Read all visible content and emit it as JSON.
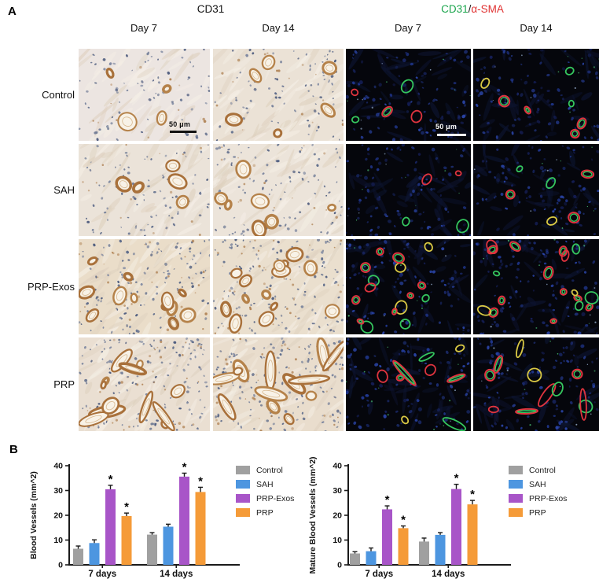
{
  "panel_a": {
    "label": "A",
    "ihc_title": "CD31",
    "if_title": {
      "parts": [
        {
          "text": "CD31",
          "color": "#1aa54c"
        },
        {
          "text": "/",
          "color": "#1a1a1a"
        },
        {
          "text": "α-SMA",
          "color": "#e03131"
        }
      ]
    },
    "column_headers": [
      "Day 7",
      "Day 14",
      "Day 7",
      "Day 14"
    ],
    "row_labels": [
      "Control",
      "SAH",
      "PRP-Exos",
      "PRP"
    ],
    "scale_bar": {
      "label": "50 μm"
    },
    "colors": {
      "ihc_stain_brown": "#a9713b",
      "ihc_nuclei_blue": "#5d6b8a",
      "if_background": "#05060c",
      "if_nuclei_blue": "#223a96",
      "if_cd31_green": "#35c65e",
      "if_asma_red": "#e0343f",
      "if_overlap_yellow": "#d9c844"
    },
    "tiles": [
      {
        "row": "Control",
        "col": "Day 7",
        "stain": "ihc",
        "vessels": 4,
        "nuclei": 80,
        "elongated": false,
        "bg": "#ece5e1",
        "scale_bar": true
      },
      {
        "row": "Control",
        "col": "Day 14",
        "stain": "ihc",
        "vessels": 6,
        "nuclei": 85,
        "elongated": false,
        "bg": "#ebe2d6",
        "scale_bar": false
      },
      {
        "row": "Control",
        "col": "Day 7",
        "stain": "if",
        "vessels": 5,
        "nuclei": 100,
        "elongated": false,
        "bg": "#05060c",
        "scale_bar": true
      },
      {
        "row": "Control",
        "col": "Day 14",
        "stain": "if",
        "vessels": 7,
        "nuclei": 95,
        "elongated": false,
        "bg": "#05060c",
        "scale_bar": false
      },
      {
        "row": "SAH",
        "col": "Day 7",
        "stain": "ihc",
        "vessels": 5,
        "nuclei": 90,
        "elongated": false,
        "bg": "#ebe3d9",
        "scale_bar": false
      },
      {
        "row": "SAH",
        "col": "Day 14",
        "stain": "ihc",
        "vessels": 7,
        "nuclei": 95,
        "elongated": false,
        "bg": "#ece4da",
        "scale_bar": false
      },
      {
        "row": "SAH",
        "col": "Day 7",
        "stain": "if",
        "vessels": 4,
        "nuclei": 100,
        "elongated": false,
        "bg": "#05060c",
        "scale_bar": false
      },
      {
        "row": "SAH",
        "col": "Day 14",
        "stain": "if",
        "vessels": 6,
        "nuclei": 95,
        "elongated": false,
        "bg": "#05060c",
        "scale_bar": false
      },
      {
        "row": "PRP-Exos",
        "col": "Day 7",
        "stain": "ihc",
        "vessels": 12,
        "nuclei": 130,
        "elongated": false,
        "bg": "#eaddc9",
        "scale_bar": false
      },
      {
        "row": "PRP-Exos",
        "col": "Day 14",
        "stain": "ihc",
        "vessels": 14,
        "nuclei": 135,
        "elongated": false,
        "bg": "#eadfce",
        "scale_bar": false
      },
      {
        "row": "PRP-Exos",
        "col": "Day 7",
        "stain": "if",
        "vessels": 16,
        "nuclei": 110,
        "elongated": false,
        "bg": "#05060c",
        "scale_bar": false
      },
      {
        "row": "PRP-Exos",
        "col": "Day 14",
        "stain": "if",
        "vessels": 18,
        "nuclei": 115,
        "elongated": false,
        "bg": "#05060c",
        "scale_bar": false
      },
      {
        "row": "PRP",
        "col": "Day 7",
        "stain": "ihc",
        "vessels": 12,
        "nuclei": 160,
        "elongated": true,
        "bg": "#eadfd2",
        "scale_bar": false
      },
      {
        "row": "PRP",
        "col": "Day 14",
        "stain": "ihc",
        "vessels": 13,
        "nuclei": 165,
        "elongated": true,
        "bg": "#e9ddcd",
        "scale_bar": false
      },
      {
        "row": "PRP",
        "col": "Day 7",
        "stain": "if",
        "vessels": 9,
        "nuclei": 105,
        "elongated": true,
        "bg": "#05060c",
        "scale_bar": false
      },
      {
        "row": "PRP",
        "col": "Day 14",
        "stain": "if",
        "vessels": 11,
        "nuclei": 110,
        "elongated": true,
        "bg": "#05060c",
        "scale_bar": false
      }
    ]
  },
  "panel_b": {
    "label": "B",
    "chart_data": [
      {
        "type": "bar",
        "title": "",
        "xlabel": "",
        "ylabel": "Blood Vessels (mm^2)",
        "ylim": [
          0,
          40
        ],
        "yticks": [
          0,
          10,
          20,
          30,
          40
        ],
        "categories": [
          "7 days",
          "14 days"
        ],
        "legend_position": "right",
        "grid": false,
        "series": [
          {
            "name": "Control",
            "color": "#a0a0a0",
            "values": [
              6.5,
              12.2
            ],
            "errors": [
              1.1,
              0.8
            ],
            "sig": [
              false,
              false
            ]
          },
          {
            "name": "SAH",
            "color": "#4d96e0",
            "values": [
              8.8,
              15.4
            ],
            "errors": [
              1.3,
              1.0
            ],
            "sig": [
              false,
              false
            ]
          },
          {
            "name": "PRP-Exos",
            "color": "#a855c8",
            "values": [
              30.5,
              35.6
            ],
            "errors": [
              1.6,
              1.4
            ],
            "sig": [
              true,
              true
            ]
          },
          {
            "name": "PRP",
            "color": "#f59b38",
            "values": [
              19.7,
              29.4
            ],
            "errors": [
              1.2,
              1.9
            ],
            "sig": [
              true,
              true
            ]
          }
        ]
      },
      {
        "type": "bar",
        "title": "",
        "xlabel": "",
        "ylabel": "Mature Blood Vessels (mm^2)",
        "ylim": [
          0,
          40
        ],
        "yticks": [
          0,
          10,
          20,
          30,
          40
        ],
        "categories": [
          "7 days",
          "14 days"
        ],
        "legend_position": "right",
        "grid": false,
        "series": [
          {
            "name": "Control",
            "color": "#a0a0a0",
            "values": [
              4.6,
              9.4
            ],
            "errors": [
              0.7,
              1.4
            ],
            "sig": [
              false,
              false
            ]
          },
          {
            "name": "SAH",
            "color": "#4d96e0",
            "values": [
              5.5,
              12.1
            ],
            "errors": [
              1.3,
              0.9
            ],
            "sig": [
              false,
              false
            ]
          },
          {
            "name": "PRP-Exos",
            "color": "#a855c8",
            "values": [
              22.4,
              30.6
            ],
            "errors": [
              1.4,
              1.9
            ],
            "sig": [
              true,
              true
            ]
          },
          {
            "name": "PRP",
            "color": "#f59b38",
            "values": [
              14.8,
              24.4
            ],
            "errors": [
              0.9,
              1.6
            ],
            "sig": [
              true,
              true
            ]
          }
        ]
      }
    ]
  }
}
